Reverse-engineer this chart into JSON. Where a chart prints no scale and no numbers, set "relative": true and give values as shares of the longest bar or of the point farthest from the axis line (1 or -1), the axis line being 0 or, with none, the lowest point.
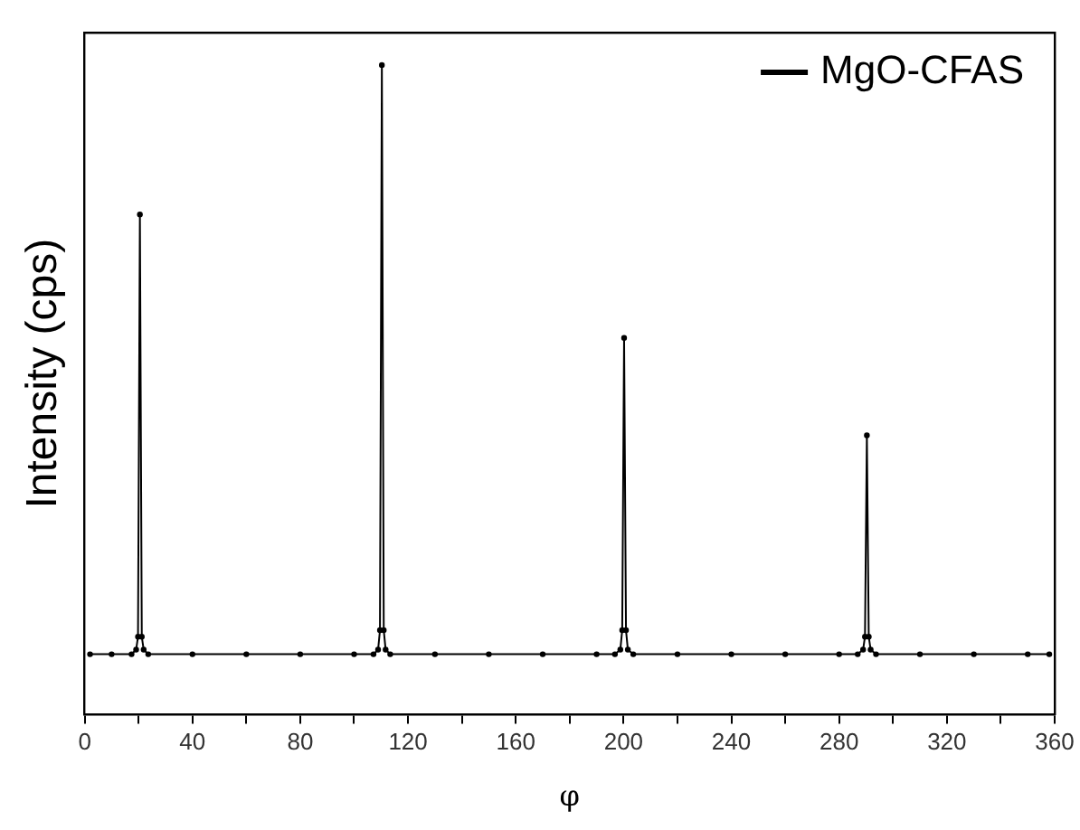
{
  "chart_data": {
    "type": "line",
    "xlabel": "φ",
    "ylabel": "Intensity (cps)",
    "relative": true,
    "xlim": [
      0,
      360
    ],
    "xticks": [
      0,
      {
        "value": 20,
        "label": null
      },
      40,
      {
        "value": 60,
        "label": null
      },
      80,
      {
        "value": 100,
        "label": null
      },
      120,
      {
        "value": 140,
        "label": null
      },
      160,
      {
        "value": 180,
        "label": null
      },
      200,
      {
        "value": 220,
        "label": null
      },
      240,
      {
        "value": 260,
        "label": null
      },
      280,
      {
        "value": 300,
        "label": null
      },
      320,
      {
        "value": 340,
        "label": null
      },
      360
    ],
    "grid": false,
    "legend": "top right",
    "marker": "circle",
    "line_style": "solid",
    "tick_labels": "x",
    "series": [
      {
        "name": "MgO-CFAS",
        "color": "#000000",
        "x": [
          2,
          10,
          17.4,
          19.1,
          19.8,
          20.5,
          21.2,
          21.9,
          23.6,
          40,
          60,
          80,
          100,
          107.2,
          108.9,
          109.6,
          110.3,
          111,
          111.7,
          113.4,
          130,
          150,
          170,
          190,
          196.8,
          198.8,
          199.5,
          200.2,
          200.9,
          201.6,
          203.6,
          220,
          240,
          260,
          280,
          286.9,
          288.9,
          289.6,
          290.3,
          291,
          291.7,
          293.7,
          310,
          330,
          350,
          358
        ],
        "values": [
          0.093,
          0.093,
          0.093,
          0.1,
          0.12,
          0.77,
          0.12,
          0.1,
          0.093,
          0.093,
          0.093,
          0.093,
          0.093,
          0.093,
          0.1,
          0.13,
          1,
          0.13,
          0.1,
          0.093,
          0.093,
          0.093,
          0.093,
          0.093,
          0.093,
          0.1,
          0.13,
          0.58,
          0.13,
          0.1,
          0.093,
          0.093,
          0.093,
          0.093,
          0.093,
          0.093,
          0.1,
          0.12,
          0.43,
          0.12,
          0.1,
          0.093,
          0.093,
          0.093,
          0.093,
          0.093
        ]
      }
    ]
  }
}
